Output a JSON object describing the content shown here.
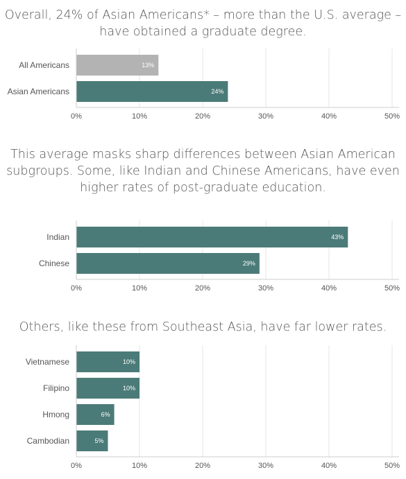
{
  "colors": {
    "bar": "#4b7b78",
    "bar_muted": "#b3b3b3",
    "grid": "#e6e6e6",
    "axis": "#cccccc",
    "text": "#555555"
  },
  "chart_data": [
    {
      "type": "bar",
      "orientation": "horizontal",
      "title": "Overall, 24% of Asian Americans* – more than the U.S. average – have obtained a graduate degree.",
      "categories": [
        "All Americans",
        "Asian Americans"
      ],
      "values": [
        13,
        24
      ],
      "value_labels": [
        "13%",
        "24%"
      ],
      "bar_colors": [
        "#b3b3b3",
        "#4b7b78"
      ],
      "xlim": [
        0,
        50
      ],
      "ticks": [
        "0%",
        "10%",
        "20%",
        "30%",
        "40%",
        "50%"
      ],
      "grid": true
    },
    {
      "type": "bar",
      "orientation": "horizontal",
      "title": "This average masks sharp differences between Asian American subgroups. Some, like Indian and Chinese Americans, have even higher rates of post-graduate education.",
      "categories": [
        "Indian",
        "Chinese"
      ],
      "values": [
        43,
        29
      ],
      "value_labels": [
        "43%",
        "29%"
      ],
      "bar_colors": [
        "#4b7b78",
        "#4b7b78"
      ],
      "xlim": [
        0,
        50
      ],
      "ticks": [
        "0%",
        "10%",
        "20%",
        "30%",
        "40%",
        "50%"
      ],
      "grid": true
    },
    {
      "type": "bar",
      "orientation": "horizontal",
      "title": "Others, like these from Southeast Asia, have far lower rates.",
      "categories": [
        "Vietnamese",
        "Filipino",
        "Hmong",
        "Cambodian"
      ],
      "values": [
        10,
        10,
        6,
        5
      ],
      "value_labels": [
        "10%",
        "10%",
        "6%",
        "5%"
      ],
      "bar_colors": [
        "#4b7b78",
        "#4b7b78",
        "#4b7b78",
        "#4b7b78"
      ],
      "xlim": [
        0,
        50
      ],
      "ticks": [
        "0%",
        "10%",
        "20%",
        "30%",
        "40%",
        "50%"
      ],
      "grid": true
    }
  ]
}
